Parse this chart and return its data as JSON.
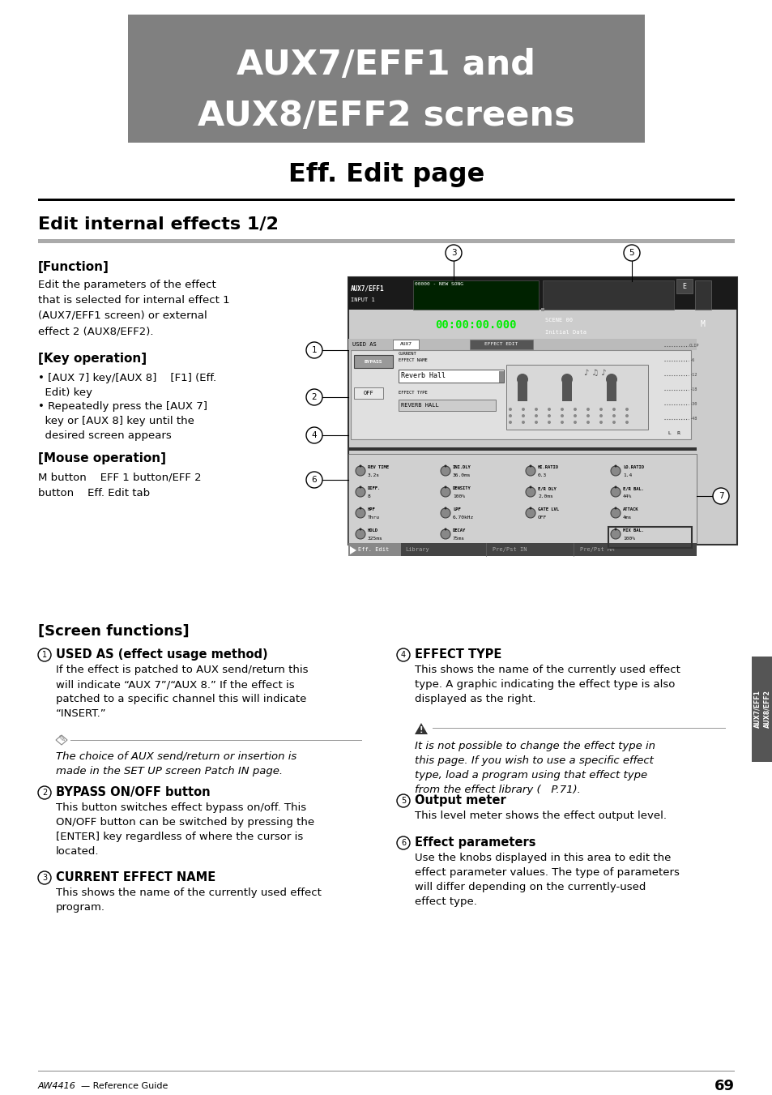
{
  "bg_color": "#ffffff",
  "title_box_color": "#808080",
  "title_line1": "AUX7/EFF1 and",
  "title_line2": "AUX8/EFF2 screens",
  "subtitle": "Eff. Edit page",
  "section_title": "Edit internal effects 1/2",
  "function_header": "[Function]",
  "function_text": "Edit the parameters of the effect\nthat is selected for internal effect 1\n(AUX7/EFF1 screen) or external\neffect 2 (AUX8/EFF2).",
  "key_op_header": "[Key operation]",
  "key_op_bullet1": "• [AUX 7] key/[AUX 8]    [F1] (Eff.\n  Edit) key",
  "key_op_bullet2": "• Repeatedly press the [AUX 7]\n  key or [AUX 8] key until the\n  desired screen appears",
  "mouse_op_header": "[Mouse operation]",
  "mouse_op_text": "M button    EFF 1 button/EFF 2\nbutton    Eff. Edit tab",
  "screen_func_header": "[Screen functions]",
  "item1_title": "USED AS (effect usage method)",
  "item1_text": "If the effect is patched to AUX send/return this\nwill indicate “AUX 7”/“AUX 8.” If the effect is\npatched to a specific channel this will indicate\n“INSERT.”",
  "note_text1": "The choice of AUX send/return or insertion is\nmade in the SET UP screen Patch IN page.",
  "item2_title": "BYPASS ON/OFF button",
  "item2_text": "This button switches effect bypass on/off. This\nON/OFF button can be switched by pressing the\n[ENTER] key regardless of where the cursor is\nlocated.",
  "item3_title": "CURRENT EFFECT NAME",
  "item3_text": "This shows the name of the currently used effect\nprogram.",
  "item4_title": "EFFECT TYPE",
  "item4_text": "This shows the name of the currently used effect\ntype. A graphic indicating the effect type is also\ndisplayed as the right.",
  "note_text2": "It is not possible to change the effect type in\nthis page. If you wish to use a specific effect\ntype, load a program using that effect type\nfrom the effect library (   P.71).",
  "item5_title": "Output meter",
  "item5_text": "This level meter shows the effect output level.",
  "item6_title": "Effect parameters",
  "item6_text": "Use the knobs displayed in this area to edit the\neffect parameter values. The type of parameters\nwill differ depending on the currently-used\neffect type.",
  "footer_brand": "AW4416",
  "footer_dash": "— Reference Guide",
  "footer_page": "69",
  "sidebar_text": "AUX7/EFF1\nAUX8/EFF2"
}
